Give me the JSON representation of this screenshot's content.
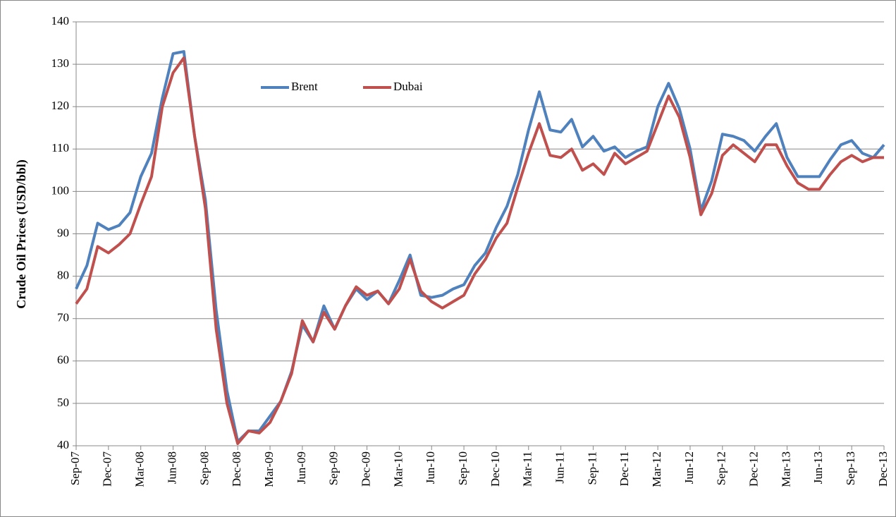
{
  "chart_data": {
    "type": "line",
    "y_label": "Crude Oil Prices (USD/bbl)",
    "categories": [
      "Sep-07",
      null,
      null,
      "Dec-07",
      null,
      null,
      "Mar-08",
      null,
      null,
      "Jun-08",
      null,
      null,
      "Sep-08",
      null,
      null,
      "Dec-08",
      null,
      null,
      "Mar-09",
      null,
      null,
      "Jun-09",
      null,
      null,
      "Sep-09",
      null,
      null,
      "Dec-09",
      null,
      null,
      "Mar-10",
      null,
      null,
      "Jun-10",
      null,
      null,
      "Sep-10",
      null,
      null,
      "Dec-10",
      null,
      null,
      "Mar-11",
      null,
      null,
      "Jun-11",
      null,
      null,
      "Sep-11",
      null,
      null,
      "Dec-11",
      null,
      null,
      "Mar-12",
      null,
      null,
      "Jun-12",
      null,
      null,
      "Sep-12",
      null,
      null,
      "Dec-12",
      null,
      null,
      "Mar-13",
      null,
      null,
      "Jun-13",
      null,
      null,
      "Sep-13",
      null,
      null,
      "Dec-13"
    ],
    "series": [
      {
        "name": "Brent",
        "color": "#4f81bd",
        "values": [
          77,
          82.5,
          92.5,
          91,
          92,
          95,
          103.5,
          109,
          122,
          132.5,
          133,
          113,
          98,
          72,
          53,
          41,
          43.5,
          43.5,
          47,
          50.5,
          57.5,
          68.5,
          64.5,
          73,
          67.5,
          73,
          77,
          74.5,
          76.5,
          73.5,
          79,
          85,
          75.5,
          75,
          75.5,
          77,
          78,
          82.5,
          85.5,
          91.5,
          96.5,
          104,
          114.5,
          123.5,
          114.5,
          114,
          117,
          110.5,
          113,
          109.5,
          110.5,
          108,
          109.5,
          110.5,
          120,
          125.5,
          119.5,
          110,
          95.5,
          102.5,
          113.5,
          113,
          112,
          109.5,
          113,
          116,
          108,
          103.5,
          103.5,
          103.5,
          107.5,
          111,
          112,
          109,
          108,
          111
        ]
      },
      {
        "name": "Dubai",
        "color": "#c0504d",
        "values": [
          73.5,
          77,
          87,
          85.5,
          87.5,
          90,
          97,
          103.5,
          120,
          128,
          131.5,
          113,
          96,
          67.5,
          50,
          40.5,
          43.5,
          43,
          45.5,
          50.5,
          57,
          69.5,
          64.5,
          71.5,
          67.5,
          73,
          77.5,
          75.5,
          76.5,
          73.5,
          77,
          84,
          76.5,
          74,
          72.5,
          74,
          75.5,
          80.5,
          84,
          89,
          92.5,
          101,
          109,
          116,
          108.5,
          108,
          110,
          105,
          106.5,
          104,
          109,
          106.5,
          108,
          109.5,
          116,
          122.5,
          117.5,
          108,
          94.5,
          99.5,
          108.5,
          111,
          109,
          107,
          111,
          111,
          106,
          102,
          100.5,
          100.5,
          104,
          107,
          108.5,
          107,
          108,
          108
        ]
      }
    ],
    "ylim": [
      40,
      140
    ],
    "yticks": [
      40,
      50,
      60,
      70,
      80,
      90,
      100,
      110,
      120,
      130,
      140
    ],
    "grid": true
  }
}
